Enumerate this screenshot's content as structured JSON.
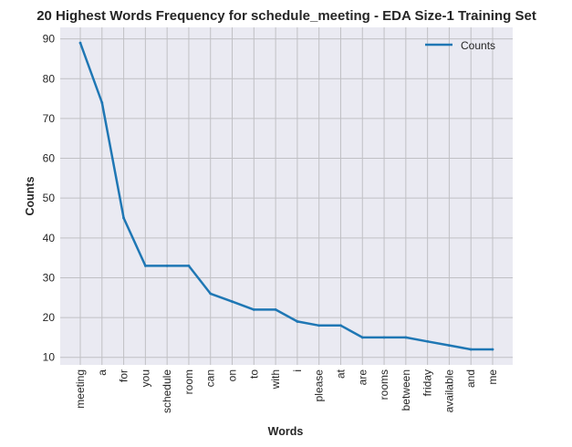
{
  "chart_data": {
    "type": "line",
    "title": "20 Highest Words Frequency for schedule_meeting - EDA Size-1 Training Set",
    "xlabel": "Words",
    "ylabel": "Counts",
    "categories": [
      "meeting",
      "a",
      "for",
      "you",
      "schedule",
      "room",
      "can",
      "on",
      "to",
      "with",
      "i",
      "please",
      "at",
      "are",
      "rooms",
      "between",
      "friday",
      "available",
      "and",
      "me"
    ],
    "series": [
      {
        "name": "Counts",
        "color": "#1f77b4",
        "values": [
          89,
          74,
          45,
          33,
          33,
          33,
          26,
          24,
          22,
          22,
          19,
          18,
          18,
          15,
          15,
          15,
          14,
          13,
          12,
          12
        ]
      }
    ],
    "yticks": [
      "10",
      "20",
      "30",
      "40",
      "50",
      "60",
      "70",
      "80",
      "90"
    ],
    "ylim": [
      8.1,
      92.9
    ],
    "grid": true,
    "legend_position": "top-right",
    "colors": {
      "plot_bg": "#eaeaf2",
      "grid": "#c0c0c4",
      "text": "#262626"
    }
  }
}
